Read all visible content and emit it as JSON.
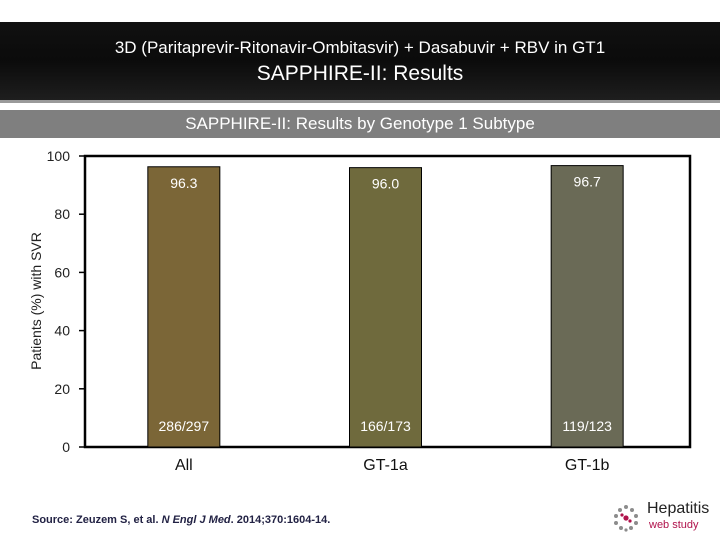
{
  "header": {
    "line1": "3D (Paritaprevir-Ritonavir-Ombitasvir) + Dasabuvir + RBV in GT1",
    "line2": "SAPPHIRE-II: Results"
  },
  "subtitle": "SAPPHIRE-II: Results by Genotype 1 Subtype",
  "chart_data": {
    "type": "bar",
    "title": "SAPPHIRE-II: Results by Genotype 1 Subtype",
    "ylabel": "Patients (%) with SVR",
    "xlabel": "",
    "ylim": [
      0,
      100
    ],
    "yticks": [
      0,
      20,
      40,
      60,
      80,
      100
    ],
    "grid": false,
    "categories": [
      "All",
      "GT-1a",
      "GT-1b"
    ],
    "values": [
      96.3,
      96.0,
      96.7
    ],
    "value_labels": [
      "96.3",
      "96.0",
      "96.7"
    ],
    "count_labels": [
      "286/297",
      "166/173",
      "119/123"
    ],
    "colors": [
      "#7b6637",
      "#6f6a3d",
      "#6a6a56"
    ]
  },
  "source": {
    "prefix": "Source: Zeuzem S, et al. ",
    "journal": "N Engl J Med",
    "suffix": ". 2014;370:1604-14."
  },
  "logo": {
    "line1": "Hepatitis",
    "line2": "web study"
  }
}
